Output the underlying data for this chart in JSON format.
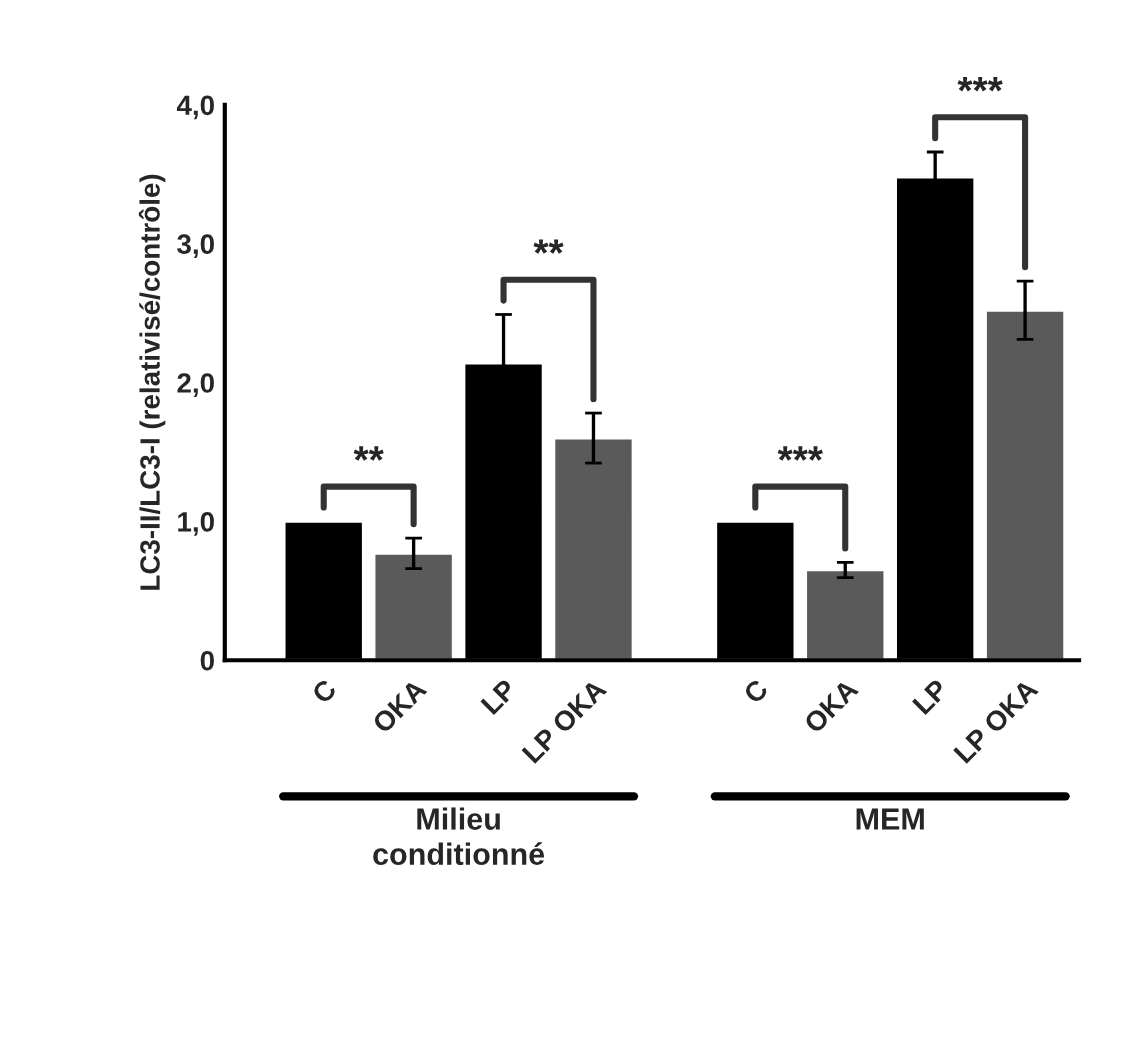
{
  "chart_data": {
    "type": "bar",
    "ylabel": "LC3-II/LC3-I (relativisé/contrôle)",
    "categories": [
      "C",
      "OKA",
      "LP",
      "LP OKA",
      "C",
      "OKA",
      "LP",
      "LP OKA"
    ],
    "values": [
      1.0,
      0.77,
      2.14,
      1.6,
      1.0,
      0.65,
      3.48,
      2.52
    ],
    "errors": [
      null,
      0.11,
      0.35,
      0.18,
      null,
      0.055,
      0.18,
      0.21
    ],
    "colors": [
      "#000000",
      "#5a5a5a",
      "#000000",
      "#5a5a5a",
      "#000000",
      "#5a5a5a",
      "#000000",
      "#5a5a5a"
    ],
    "ylim": [
      0,
      4
    ],
    "yticks": [
      0,
      {
        "value": 1,
        "label": "1,0"
      },
      {
        "value": 2,
        "label": "2,0"
      },
      {
        "value": 3,
        "label": "3,0"
      },
      {
        "value": 4,
        "label": "4,0"
      }
    ],
    "grid": false,
    "annotations": [
      "**",
      "**",
      "***",
      "***",
      "Milieu\nconditionné",
      "MEM"
    ]
  }
}
